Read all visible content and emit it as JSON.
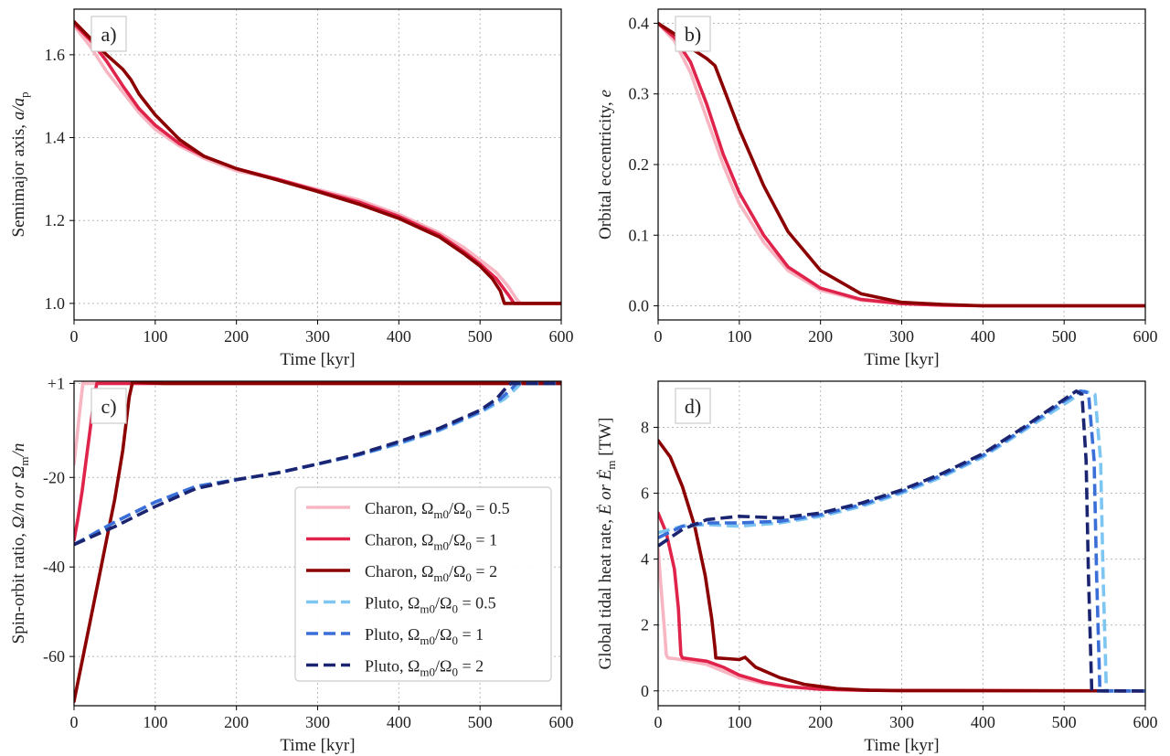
{
  "colors": {
    "charon_05": "#f7b6c2",
    "charon_1": "#e0234a",
    "charon_2": "#8b0000",
    "pluto_05": "#7ec6f2",
    "pluto_1": "#3a6fd8",
    "pluto_2": "#1a2470"
  },
  "chart_data": [
    {
      "type": "line",
      "panel": "a)",
      "xlabel": "Time [kyr]",
      "ylabel_main": "Semimajor axis, ",
      "ylabel_var": "a/a",
      "ylabel_sub": "p",
      "xlim": [
        0,
        600
      ],
      "ylim": [
        0.96,
        1.71
      ],
      "xticks": [
        0,
        100,
        200,
        300,
        400,
        500,
        600
      ],
      "xtick_labels": [
        "0",
        "100",
        "200",
        "300",
        "400",
        "500",
        "600"
      ],
      "yticks": [
        1.0,
        1.2,
        1.4,
        1.6
      ],
      "ytick_labels": [
        "1.0",
        "1.2",
        "1.4",
        "1.6"
      ],
      "series": [
        {
          "name": "Charon, 0.5",
          "color_key": "charon_05",
          "dash": false,
          "x": [
            0,
            20,
            40,
            60,
            80,
            100,
            130,
            160,
            200,
            250,
            300,
            350,
            400,
            450,
            480,
            500,
            520,
            535,
            545,
            550,
            600
          ],
          "y": [
            1.67,
            1.62,
            1.56,
            1.51,
            1.46,
            1.42,
            1.38,
            1.35,
            1.32,
            1.3,
            1.275,
            1.25,
            1.215,
            1.17,
            1.135,
            1.105,
            1.075,
            1.04,
            1.01,
            1.0,
            1.0
          ]
        },
        {
          "name": "Charon, 1",
          "color_key": "charon_1",
          "dash": false,
          "x": [
            0,
            20,
            40,
            60,
            80,
            100,
            130,
            160,
            200,
            250,
            300,
            350,
            400,
            450,
            480,
            500,
            520,
            535,
            542,
            600
          ],
          "y": [
            1.675,
            1.635,
            1.585,
            1.525,
            1.47,
            1.43,
            1.385,
            1.355,
            1.325,
            1.3,
            1.272,
            1.245,
            1.21,
            1.165,
            1.125,
            1.095,
            1.06,
            1.02,
            1.0,
            1.0
          ]
        },
        {
          "name": "Charon, 2",
          "color_key": "charon_2",
          "dash": false,
          "x": [
            0,
            20,
            40,
            60,
            70,
            80,
            100,
            130,
            160,
            200,
            250,
            300,
            350,
            400,
            450,
            480,
            500,
            515,
            525,
            530,
            600
          ],
          "y": [
            1.68,
            1.64,
            1.6,
            1.565,
            1.54,
            1.505,
            1.455,
            1.395,
            1.355,
            1.325,
            1.298,
            1.27,
            1.24,
            1.205,
            1.16,
            1.12,
            1.09,
            1.06,
            1.03,
            1.0,
            1.0
          ]
        }
      ]
    },
    {
      "type": "line",
      "panel": "b)",
      "xlabel": "Time [kyr]",
      "ylabel_main": "Orbital eccentricity, ",
      "ylabel_var": "e",
      "ylabel_sub": "",
      "xlim": [
        0,
        600
      ],
      "ylim": [
        -0.02,
        0.42
      ],
      "xticks": [
        0,
        100,
        200,
        300,
        400,
        500,
        600
      ],
      "xtick_labels": [
        "0",
        "100",
        "200",
        "300",
        "400",
        "500",
        "600"
      ],
      "yticks": [
        0.0,
        0.1,
        0.2,
        0.3,
        0.4
      ],
      "ytick_labels": [
        "0.0",
        "0.1",
        "0.2",
        "0.3",
        "0.4"
      ],
      "series": [
        {
          "name": "Charon, 0.5",
          "color_key": "charon_05",
          "dash": false,
          "x": [
            0,
            20,
            40,
            60,
            80,
            100,
            130,
            160,
            200,
            250,
            300,
            350,
            400,
            600
          ],
          "y": [
            0.4,
            0.375,
            0.33,
            0.265,
            0.2,
            0.145,
            0.09,
            0.05,
            0.022,
            0.008,
            0.003,
            0.001,
            0.0,
            0.0
          ]
        },
        {
          "name": "Charon, 1",
          "color_key": "charon_1",
          "dash": false,
          "x": [
            0,
            20,
            40,
            60,
            80,
            100,
            130,
            160,
            200,
            250,
            300,
            350,
            400,
            600
          ],
          "y": [
            0.4,
            0.38,
            0.345,
            0.285,
            0.215,
            0.16,
            0.1,
            0.055,
            0.025,
            0.009,
            0.003,
            0.001,
            0.0,
            0.0
          ]
        },
        {
          "name": "Charon, 2",
          "color_key": "charon_2",
          "dash": false,
          "x": [
            0,
            20,
            40,
            60,
            70,
            80,
            100,
            130,
            160,
            200,
            250,
            300,
            350,
            400,
            600
          ],
          "y": [
            0.4,
            0.385,
            0.365,
            0.35,
            0.34,
            0.31,
            0.25,
            0.17,
            0.105,
            0.05,
            0.017,
            0.005,
            0.002,
            0.0,
            0.0
          ]
        }
      ]
    },
    {
      "type": "line",
      "panel": "c)",
      "xlabel": "Time [kyr]",
      "ylabel_main": "Spin-orbit ratio, ",
      "ylabel_var": "Ω/n or Ω",
      "ylabel_sub": "m",
      "ylabel_tail": "/n",
      "xlim": [
        0,
        600
      ],
      "ylim": [
        -71,
        1.5
      ],
      "xticks": [
        0,
        100,
        200,
        300,
        400,
        500,
        600
      ],
      "xtick_labels": [
        "0",
        "100",
        "200",
        "300",
        "400",
        "500",
        "600"
      ],
      "yticks": [
        1,
        -20,
        -40,
        -60
      ],
      "ytick_labels": [
        "+1",
        "-20",
        "-40",
        "-60"
      ],
      "series": [
        {
          "name": "Charon, 0.5",
          "color_key": "charon_05",
          "dash": false,
          "x": [
            0,
            3,
            6,
            9,
            11,
            12,
            600
          ],
          "y": [
            -17,
            -12,
            -7,
            -2,
            1.2,
            1,
            1
          ]
        },
        {
          "name": "Charon, 1",
          "color_key": "charon_1",
          "dash": false,
          "x": [
            0,
            5,
            10,
            15,
            20,
            25,
            28,
            600
          ],
          "y": [
            -34,
            -29,
            -23,
            -16,
            -9,
            -2,
            1,
            1
          ]
        },
        {
          "name": "Charon, 2",
          "color_key": "charon_2",
          "dash": false,
          "x": [
            0,
            10,
            20,
            30,
            40,
            50,
            60,
            68,
            72,
            110,
            600
          ],
          "y": [
            -70,
            -61,
            -52,
            -43,
            -34,
            -25,
            -14,
            -2,
            1.3,
            1,
            1
          ]
        },
        {
          "name": "Pluto, 0.5",
          "color_key": "pluto_05",
          "dash": true,
          "x": [
            0,
            50,
            100,
            150,
            200,
            250,
            300,
            350,
            400,
            450,
            500,
            530,
            545,
            550,
            600
          ],
          "y": [
            -35,
            -30,
            -25.5,
            -22,
            -20.5,
            -19,
            -17,
            -15,
            -12.5,
            -9.5,
            -5.5,
            -2.5,
            0,
            1,
            1
          ]
        },
        {
          "name": "Pluto, 1",
          "color_key": "pluto_1",
          "dash": true,
          "x": [
            0,
            50,
            100,
            150,
            200,
            250,
            300,
            350,
            400,
            450,
            500,
            525,
            540,
            545,
            600
          ],
          "y": [
            -35,
            -30,
            -25.5,
            -22,
            -20.5,
            -19,
            -17,
            -15,
            -12.3,
            -9.3,
            -5.3,
            -2.5,
            0,
            1,
            1
          ]
        },
        {
          "name": "Pluto, 2",
          "color_key": "pluto_2",
          "dash": true,
          "x": [
            0,
            50,
            100,
            150,
            200,
            250,
            300,
            350,
            400,
            450,
            500,
            520,
            532,
            538,
            600
          ],
          "y": [
            -35,
            -31,
            -26.5,
            -22.5,
            -20.5,
            -19,
            -17,
            -14.8,
            -12,
            -9,
            -5,
            -2.5,
            0,
            1,
            1
          ]
        }
      ]
    },
    {
      "type": "line",
      "panel": "d)",
      "xlabel": "Time [kyr]",
      "ylabel_main": "Global tidal heat rate, ",
      "ylabel_var": "Ė or Ė",
      "ylabel_sub": "m",
      "ylabel_tail": " [TW]",
      "xlim": [
        0,
        600
      ],
      "ylim": [
        -0.45,
        9.4
      ],
      "xticks": [
        0,
        100,
        200,
        300,
        400,
        500,
        600
      ],
      "xtick_labels": [
        "0",
        "100",
        "200",
        "300",
        "400",
        "500",
        "600"
      ],
      "yticks": [
        0,
        2,
        4,
        6,
        8
      ],
      "ytick_labels": [
        "0",
        "2",
        "4",
        "6",
        "8"
      ],
      "series": [
        {
          "name": "Charon, 0.5",
          "color_key": "charon_05",
          "dash": false,
          "x": [
            0,
            4,
            8,
            10,
            12,
            20,
            40,
            60,
            80,
            100,
            130,
            160,
            200,
            250,
            300,
            600
          ],
          "y": [
            4.3,
            3.0,
            1.8,
            1.1,
            1.0,
            0.98,
            0.9,
            0.8,
            0.6,
            0.4,
            0.22,
            0.12,
            0.05,
            0.02,
            0.01,
            0.0
          ]
        },
        {
          "name": "Charon, 1",
          "color_key": "charon_1",
          "dash": false,
          "x": [
            0,
            10,
            20,
            25,
            28,
            30,
            45,
            60,
            80,
            100,
            130,
            160,
            200,
            250,
            300,
            600
          ],
          "y": [
            5.4,
            4.8,
            3.7,
            2.5,
            1.1,
            1.0,
            0.95,
            0.9,
            0.72,
            0.48,
            0.26,
            0.13,
            0.05,
            0.02,
            0.01,
            0.0
          ]
        },
        {
          "name": "Charon, 2",
          "color_key": "charon_2",
          "dash": false,
          "x": [
            0,
            15,
            30,
            45,
            58,
            66,
            70,
            71,
            85,
            100,
            107,
            120,
            150,
            180,
            220,
            260,
            300,
            600
          ],
          "y": [
            7.6,
            7.1,
            6.2,
            5.0,
            3.5,
            2.2,
            1.3,
            1.0,
            0.98,
            0.95,
            1.02,
            0.72,
            0.4,
            0.2,
            0.07,
            0.02,
            0.01,
            0.0
          ]
        },
        {
          "name": "Pluto, 0.5",
          "color_key": "pluto_05",
          "dash": true,
          "x": [
            0,
            30,
            60,
            100,
            150,
            200,
            250,
            300,
            350,
            400,
            450,
            500,
            525,
            538,
            545,
            548,
            552,
            600
          ],
          "y": [
            4.8,
            5.0,
            5.05,
            5.0,
            5.1,
            5.3,
            5.6,
            6.0,
            6.5,
            7.1,
            7.9,
            8.7,
            9.1,
            9.0,
            7.0,
            3.5,
            0.0,
            0.0
          ]
        },
        {
          "name": "Pluto, 1",
          "color_key": "pluto_1",
          "dash": true,
          "x": [
            0,
            30,
            60,
            100,
            150,
            200,
            250,
            300,
            350,
            400,
            450,
            500,
            520,
            530,
            537,
            540,
            544,
            600
          ],
          "y": [
            4.65,
            5.0,
            5.1,
            5.1,
            5.15,
            5.35,
            5.65,
            6.05,
            6.55,
            7.15,
            7.95,
            8.8,
            9.1,
            9.05,
            7.0,
            3.5,
            0.0,
            0.0
          ]
        },
        {
          "name": "Pluto, 2",
          "color_key": "pluto_2",
          "dash": true,
          "x": [
            0,
            30,
            60,
            100,
            150,
            200,
            250,
            300,
            350,
            400,
            450,
            500,
            515,
            522,
            527,
            530,
            534,
            600
          ],
          "y": [
            4.4,
            4.9,
            5.2,
            5.3,
            5.25,
            5.4,
            5.7,
            6.1,
            6.6,
            7.2,
            8.0,
            8.85,
            9.1,
            9.0,
            7.0,
            3.5,
            0.0,
            0.0
          ]
        }
      ]
    }
  ],
  "legend": {
    "entries": [
      {
        "body": "Charon, ",
        "value": "0.5",
        "color_key": "charon_05",
        "dash": false
      },
      {
        "body": "Charon, ",
        "value": "1",
        "color_key": "charon_1",
        "dash": false
      },
      {
        "body": "Charon, ",
        "value": "2",
        "color_key": "charon_2",
        "dash": false
      },
      {
        "body": "Pluto, ",
        "value": "0.5",
        "color_key": "pluto_05",
        "dash": true
      },
      {
        "body": "Pluto, ",
        "value": "1",
        "color_key": "pluto_1",
        "dash": true
      },
      {
        "body": "Pluto, ",
        "value": "2",
        "color_key": "pluto_2",
        "dash": true
      }
    ],
    "omega": "Ω",
    "sub_m0": "m0",
    "slash": "/",
    "sub_0": "0",
    "equals": " = "
  }
}
